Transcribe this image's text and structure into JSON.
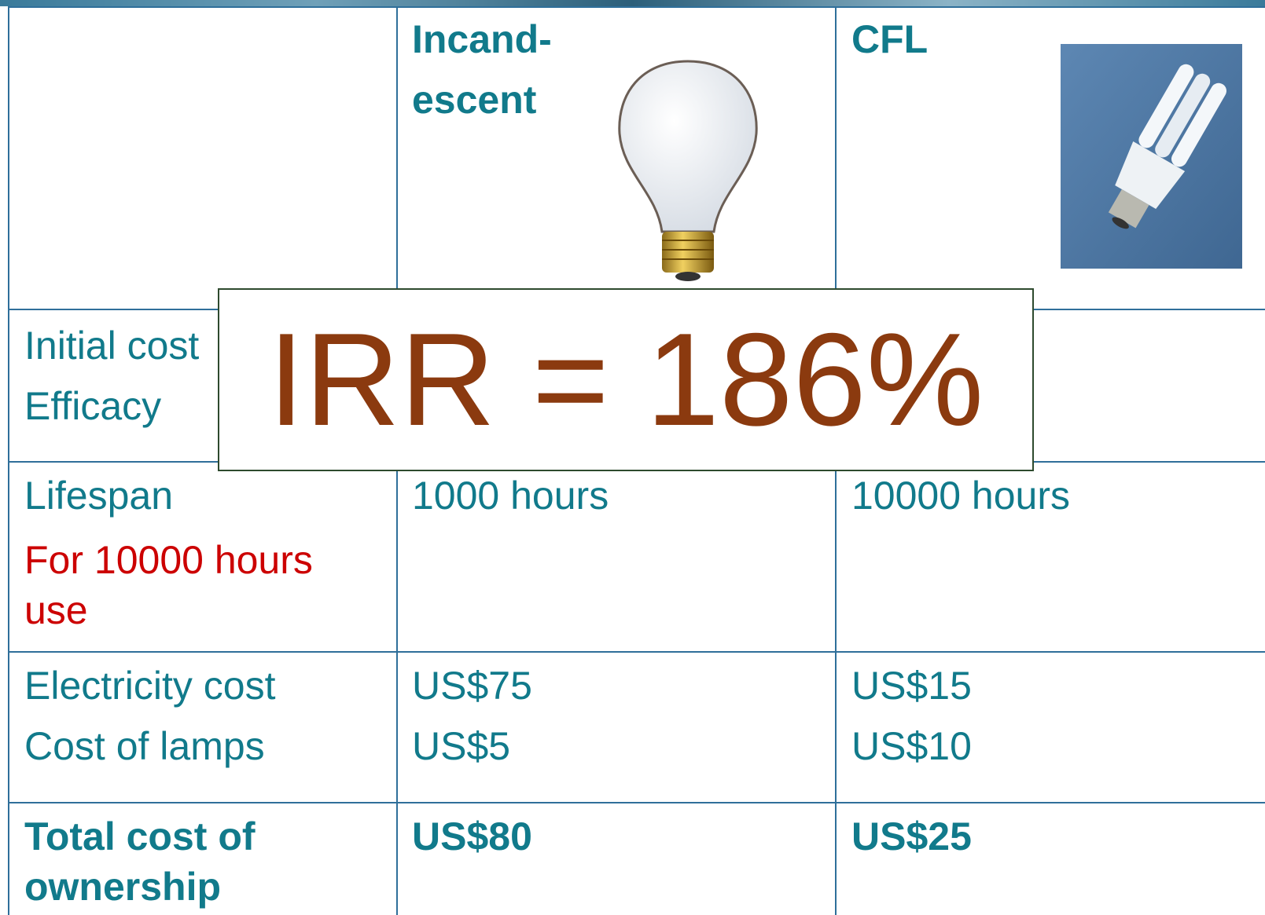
{
  "header": {
    "incandescent": [
      "Incand-",
      "escent"
    ],
    "cfl": [
      "CFL"
    ]
  },
  "rows": [
    {
      "labels": [
        "Initial cost",
        "Efficacy"
      ]
    },
    {
      "labels": [
        "Lifespan"
      ],
      "note": "For 10000 hours use",
      "incandescent": [
        "1000 hours"
      ],
      "cfl": [
        "10000 hours"
      ]
    },
    {
      "labels": [
        "Electricity cost",
        "Cost of lamps"
      ],
      "incandescent": [
        "US$75",
        "US$5"
      ],
      "cfl": [
        "US$15",
        "US$10"
      ]
    },
    {
      "labels": [
        "Total cost of ownership"
      ],
      "incandescent": [
        "US$80"
      ],
      "cfl": [
        "US$25"
      ]
    }
  ],
  "overlay": "IRR = 186%"
}
